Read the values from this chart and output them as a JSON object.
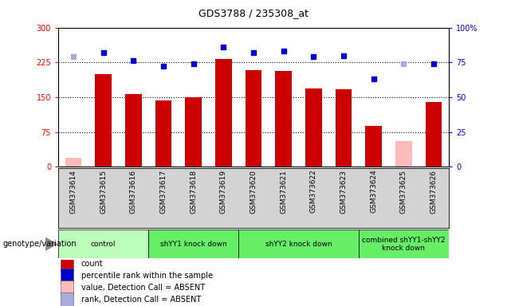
{
  "title": "GDS3788 / 235308_at",
  "samples": [
    "GSM373614",
    "GSM373615",
    "GSM373616",
    "GSM373617",
    "GSM373618",
    "GSM373619",
    "GSM373620",
    "GSM373621",
    "GSM373622",
    "GSM373623",
    "GSM373624",
    "GSM373625",
    "GSM373626"
  ],
  "counts": [
    20,
    200,
    157,
    143,
    150,
    232,
    208,
    207,
    168,
    167,
    88,
    55,
    140
  ],
  "percentile_ranks": [
    79,
    82,
    76,
    72,
    74,
    86,
    82,
    83,
    79,
    80,
    63,
    74,
    74
  ],
  "absent_count_indices": [
    0,
    11
  ],
  "absent_rank_indices": [
    0,
    11
  ],
  "groups": [
    {
      "label": "control",
      "start": 0,
      "end": 2,
      "color": "#ccffcc"
    },
    {
      "label": "shYY1 knock down",
      "start": 3,
      "end": 5,
      "color": "#66ff66"
    },
    {
      "label": "shYY2 knock down",
      "start": 6,
      "end": 9,
      "color": "#66ff66"
    },
    {
      "label": "combined shYY1-shYY2\nknock down",
      "start": 10,
      "end": 12,
      "color": "#66ff66"
    }
  ],
  "ylim_left": [
    0,
    300
  ],
  "ylim_right": [
    0,
    100
  ],
  "yticks_left": [
    0,
    75,
    150,
    225,
    300
  ],
  "yticks_right": [
    0,
    25,
    50,
    75,
    100
  ],
  "ytick_labels_left": [
    "0",
    "75",
    "150",
    "225",
    "300"
  ],
  "ytick_labels_right": [
    "0",
    "25",
    "50",
    "75",
    "100%"
  ],
  "bar_color": "#cc0000",
  "absent_bar_color": "#ffbbbb",
  "dot_color": "#0000cc",
  "absent_dot_color": "#aaaadd",
  "legend_items": [
    {
      "color": "#cc0000",
      "label": "count"
    },
    {
      "color": "#0000cc",
      "label": "percentile rank within the sample"
    },
    {
      "color": "#ffbbbb",
      "label": "value, Detection Call = ABSENT"
    },
    {
      "color": "#aaaadd",
      "label": "rank, Detection Call = ABSENT"
    }
  ]
}
